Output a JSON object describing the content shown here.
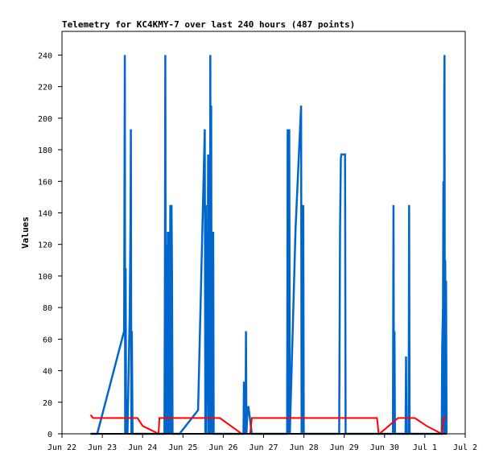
{
  "chart_data": {
    "type": "line",
    "title": "Telemetry for KC4KMY-7 over last 240 hours (487 points)",
    "xlabel": "",
    "ylabel": "Values",
    "x_range": [
      0,
      240
    ],
    "x_unit": "hours",
    "x_tick_labels": [
      "Jun 22",
      "Jun 23",
      "Jun 24",
      "Jun 25",
      "Jun 26",
      "Jun 27",
      "Jun 28",
      "Jun 29",
      "Jun 30",
      "Jul 1",
      "Jul 2"
    ],
    "ylim": [
      0,
      255
    ],
    "y_ticks": [
      0,
      20,
      40,
      60,
      80,
      100,
      120,
      140,
      160,
      180,
      200,
      220,
      240
    ],
    "grid": false,
    "legend": "none",
    "series": [
      {
        "color": "#0066cc",
        "points": [
          [
            17.0,
            0
          ],
          [
            21.0,
            0
          ],
          [
            37.0,
            65
          ],
          [
            37.4,
            240
          ],
          [
            37.6,
            0
          ],
          [
            37.9,
            105
          ],
          [
            38.2,
            0
          ],
          [
            38.6,
            22
          ],
          [
            39.0,
            0
          ],
          [
            40.3,
            75
          ],
          [
            40.8,
            137
          ],
          [
            41.0,
            193
          ],
          [
            41.3,
            0
          ],
          [
            41.6,
            65
          ],
          [
            42.0,
            0
          ],
          [
            61.0,
            0
          ],
          [
            61.2,
            80
          ],
          [
            61.5,
            240
          ],
          [
            61.8,
            0
          ],
          [
            62.0,
            120
          ],
          [
            62.4,
            87
          ],
          [
            62.7,
            0
          ],
          [
            63.0,
            128
          ],
          [
            63.4,
            0
          ],
          [
            63.7,
            128
          ],
          [
            64.0,
            0
          ],
          [
            64.5,
            145
          ],
          [
            64.8,
            0
          ],
          [
            65.2,
            145
          ],
          [
            65.5,
            104
          ],
          [
            65.8,
            0
          ],
          [
            70.0,
            0
          ],
          [
            81.0,
            15
          ],
          [
            85.0,
            193
          ],
          [
            85.3,
            0
          ],
          [
            85.6,
            145
          ],
          [
            85.9,
            0
          ],
          [
            86.2,
            45
          ],
          [
            86.5,
            20
          ],
          [
            87.0,
            177
          ],
          [
            87.3,
            0
          ],
          [
            87.5,
            128
          ],
          [
            87.8,
            150
          ],
          [
            88.0,
            0
          ],
          [
            88.3,
            240
          ],
          [
            88.6,
            0
          ],
          [
            88.8,
            208
          ],
          [
            89.1,
            0
          ],
          [
            89.4,
            80
          ],
          [
            89.7,
            0
          ],
          [
            90.0,
            128
          ],
          [
            90.3,
            0
          ],
          [
            108.0,
            0
          ],
          [
            108.3,
            33
          ],
          [
            108.6,
            0
          ],
          [
            108.9,
            20
          ],
          [
            109.2,
            0
          ],
          [
            109.5,
            65
          ],
          [
            109.8,
            0
          ],
          [
            110.5,
            17
          ],
          [
            111.0,
            17
          ],
          [
            113.0,
            0
          ],
          [
            134.0,
            0
          ],
          [
            134.3,
            193
          ],
          [
            134.6,
            0
          ],
          [
            135.0,
            12
          ],
          [
            135.3,
            193
          ],
          [
            135.6,
            0
          ],
          [
            139.0,
            130
          ],
          [
            142.0,
            200
          ],
          [
            142.3,
            208
          ],
          [
            142.6,
            0
          ],
          [
            143.0,
            110
          ],
          [
            143.3,
            0
          ],
          [
            143.6,
            145
          ],
          [
            143.9,
            0
          ],
          [
            165.0,
            0
          ],
          [
            165.5,
            130
          ],
          [
            166.0,
            175
          ],
          [
            166.3,
            177
          ],
          [
            168.5,
            177
          ],
          [
            168.8,
            0
          ],
          [
            197.0,
            0
          ],
          [
            197.3,
            145
          ],
          [
            197.6,
            0
          ],
          [
            197.9,
            65
          ],
          [
            198.2,
            0
          ],
          [
            204.5,
            0
          ],
          [
            204.8,
            49
          ],
          [
            205.1,
            0
          ],
          [
            206.3,
            0
          ],
          [
            206.6,
            145
          ],
          [
            206.9,
            0
          ],
          [
            226.0,
            0
          ],
          [
            226.3,
            55
          ],
          [
            226.8,
            80
          ],
          [
            227.0,
            160
          ],
          [
            227.3,
            0
          ],
          [
            227.5,
            215
          ],
          [
            227.7,
            240
          ],
          [
            227.9,
            0
          ],
          [
            228.1,
            110
          ],
          [
            228.3,
            0
          ],
          [
            228.6,
            97
          ],
          [
            228.9,
            0
          ]
        ]
      },
      {
        "color": "#ff0000",
        "points": [
          [
            17.0,
            12
          ],
          [
            18.5,
            10
          ],
          [
            45.0,
            10
          ],
          [
            48.0,
            5
          ],
          [
            57.5,
            0
          ],
          [
            58.0,
            10
          ],
          [
            94.0,
            10
          ],
          [
            107.0,
            0
          ],
          [
            112.0,
            0
          ],
          [
            113.0,
            10
          ],
          [
            187.5,
            10
          ],
          [
            188.5,
            0
          ],
          [
            189.0,
            0
          ],
          [
            200.0,
            10
          ],
          [
            210.0,
            10
          ],
          [
            217.0,
            5
          ],
          [
            226.0,
            0
          ],
          [
            227.0,
            10
          ],
          [
            229.0,
            10
          ]
        ]
      },
      {
        "color": "#000000",
        "points": [
          [
            17.0,
            0
          ],
          [
            229.0,
            0
          ]
        ]
      }
    ]
  }
}
